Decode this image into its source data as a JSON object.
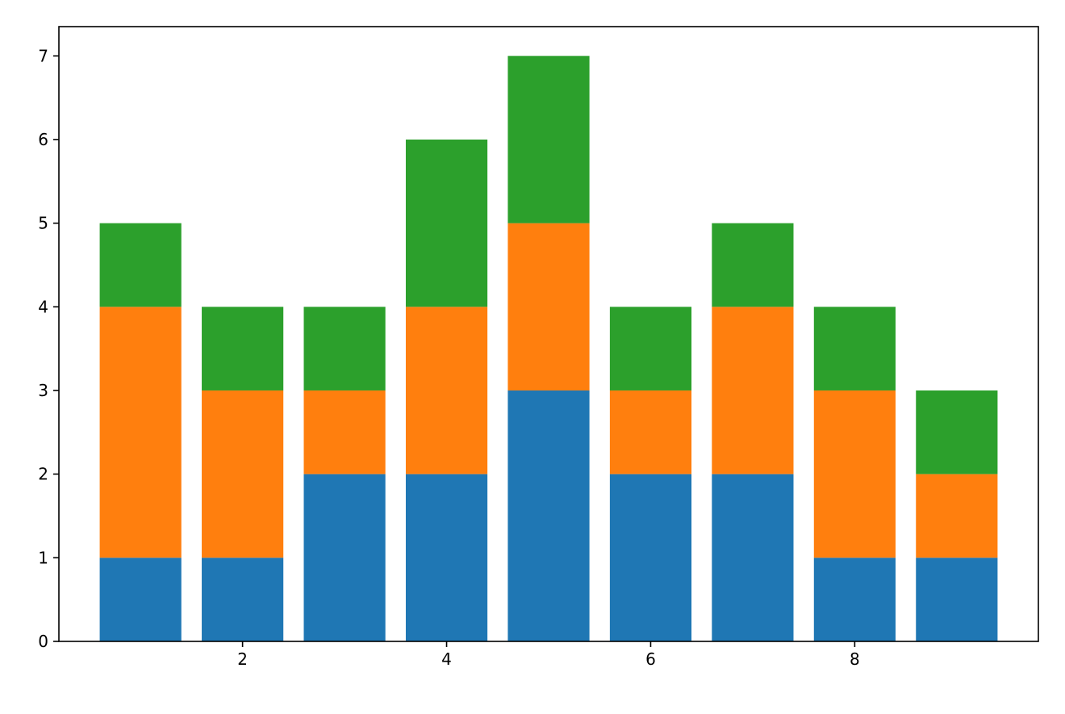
{
  "chart_data": {
    "type": "bar",
    "stacked": true,
    "title": "",
    "xlabel": "",
    "ylabel": "",
    "x": [
      1,
      2,
      3,
      4,
      5,
      6,
      7,
      8,
      9
    ],
    "series": [
      {
        "color": "#1f77b4",
        "values": [
          1,
          1,
          2,
          2,
          3,
          2,
          2,
          1,
          1
        ]
      },
      {
        "color": "#ff7f0e",
        "values": [
          3,
          2,
          1,
          2,
          2,
          1,
          2,
          2,
          1
        ]
      },
      {
        "color": "#2ca02c",
        "values": [
          1,
          1,
          1,
          2,
          2,
          1,
          1,
          1,
          1
        ]
      }
    ],
    "xlim": [
      0.2,
      9.8
    ],
    "ylim": [
      0,
      7.35
    ],
    "x_ticks": [
      2,
      4,
      6,
      8
    ],
    "x_tick_labels": [
      "2",
      "4",
      "6",
      "8"
    ],
    "y_ticks": [
      0,
      1,
      2,
      3,
      4,
      5,
      6,
      7
    ],
    "y_tick_labels": [
      "0",
      "1",
      "2",
      "3",
      "4",
      "5",
      "6",
      "7"
    ],
    "grid": false,
    "legend": "none"
  }
}
